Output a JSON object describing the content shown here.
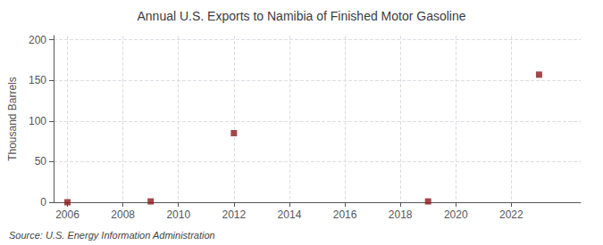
{
  "chart_data": {
    "type": "scatter",
    "title": "Annual U.S. Exports to Namibia of Finished Motor Gasoline",
    "ylabel": "Thousand Barrels",
    "source": "Source: U.S. Energy Information Administration",
    "x": [
      2006,
      2009,
      2012,
      2019,
      2023
    ],
    "values": [
      0,
      1,
      85,
      1,
      157
    ],
    "color": "#8b1a1a",
    "marker": "square",
    "xlim": [
      2005.5,
      2024.5
    ],
    "ylim": [
      0,
      205
    ],
    "xticks": [
      2006,
      2008,
      2010,
      2012,
      2014,
      2016,
      2018,
      2020,
      2022
    ],
    "yticks": [
      0,
      50,
      100,
      150,
      200
    ],
    "grid": true
  }
}
